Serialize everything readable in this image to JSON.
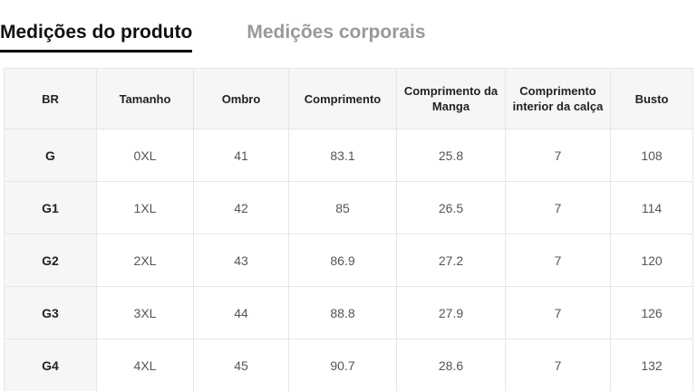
{
  "tabs": [
    {
      "label": "Medições do produto",
      "active": true
    },
    {
      "label": "Medições corporais",
      "active": false
    }
  ],
  "table": {
    "columns": [
      "BR",
      "Tamanho",
      "Ombro",
      "Comprimento",
      "Comprimento da Manga",
      "Comprimento interior da calça",
      "Busto"
    ],
    "rows": [
      [
        "G",
        "0XL",
        "41",
        "83.1",
        "25.8",
        "7",
        "108"
      ],
      [
        "G1",
        "1XL",
        "42",
        "85",
        "26.5",
        "7",
        "114"
      ],
      [
        "G2",
        "2XL",
        "43",
        "86.9",
        "27.2",
        "7",
        "120"
      ],
      [
        "G3",
        "3XL",
        "44",
        "88.8",
        "27.9",
        "7",
        "126"
      ],
      [
        "G4",
        "4XL",
        "45",
        "90.7",
        "28.6",
        "7",
        "132"
      ]
    ]
  },
  "colors": {
    "active_tab_text": "#111111",
    "active_tab_underline": "#000000",
    "inactive_tab_text": "#999999",
    "header_bg": "#f6f6f6",
    "border": "#e6e6e6",
    "data_text": "#555555",
    "strong_text": "#222222"
  }
}
